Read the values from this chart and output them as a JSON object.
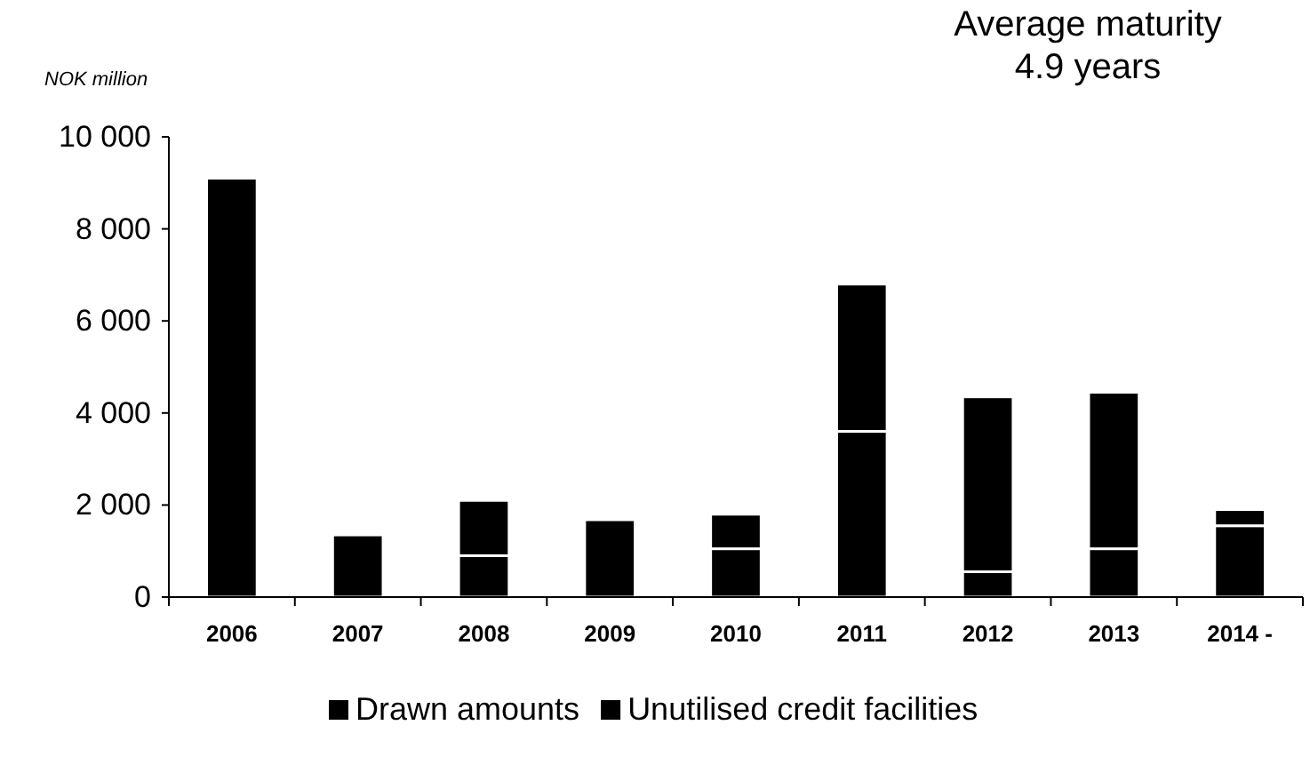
{
  "chart_data": {
    "type": "bar",
    "stacked": true,
    "ylabel": "NOK million",
    "annotations": [
      "Average maturity\n4.9 years"
    ],
    "categories": [
      "2006",
      "2007",
      "2008",
      "2009",
      "2010",
      "2011",
      "2012",
      "2013",
      "2014 -"
    ],
    "series": [
      {
        "name": "Drawn amounts",
        "color": "#000000",
        "values": [
          9100,
          1350,
          900,
          1680,
          1050,
          3600,
          550,
          1050,
          1550
        ]
      },
      {
        "name": "Unutilised credit facilities",
        "color": "#000000",
        "values": [
          0,
          0,
          1200,
          0,
          750,
          3200,
          3800,
          3400,
          350
        ]
      }
    ],
    "ylim": [
      0,
      10000
    ],
    "yticks": [
      0,
      {
        "value": 2000,
        "label": "2 000"
      },
      {
        "value": 4000,
        "label": "4 000"
      },
      {
        "value": 6000,
        "label": "6 000"
      },
      {
        "value": 8000,
        "label": "8 000"
      },
      {
        "value": 10000,
        "label": "10 000"
      }
    ],
    "grid": false,
    "legend": "bottom"
  }
}
